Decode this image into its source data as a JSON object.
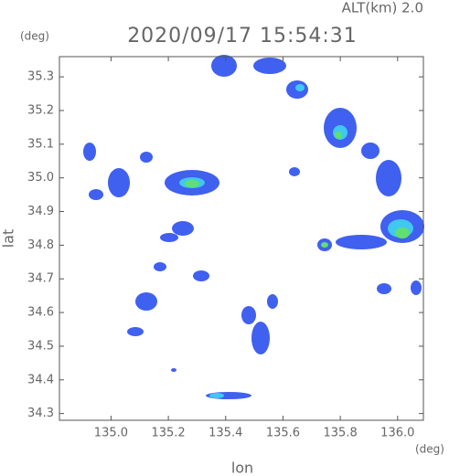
{
  "chart_data": {
    "type": "map",
    "title": "2020/09/17 15:54:31",
    "subtitle": "ALT(km) 2.0",
    "x_label": "lon",
    "y_label": "lat",
    "x_unit": "(deg)",
    "y_unit": "(deg)",
    "xlim": [
      134.82,
      136.09
    ],
    "ylim": [
      34.28,
      35.36
    ],
    "xticks": [
      {
        "value": 135.0,
        "label": "135.0"
      },
      {
        "value": 135.2,
        "label": "135.2"
      },
      {
        "value": 135.4,
        "label": "135.4"
      },
      {
        "value": 135.6,
        "label": "135.6"
      },
      {
        "value": 135.8,
        "label": "135.8"
      },
      {
        "value": 136.0,
        "label": "136.0"
      }
    ],
    "yticks": [
      34.3,
      34.4,
      34.5,
      34.6,
      34.7,
      34.8,
      34.9,
      {
        "value": 35.0,
        "label": "35.0"
      },
      35.1,
      35.2,
      35.3
    ]
  }
}
